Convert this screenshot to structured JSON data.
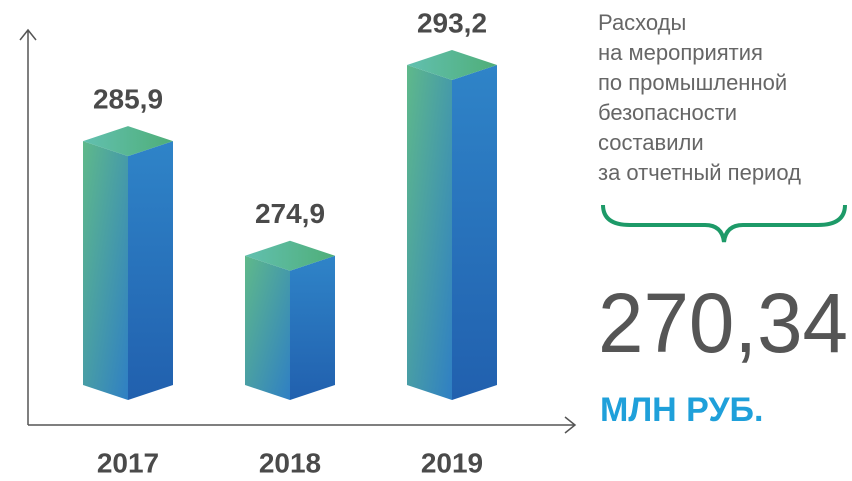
{
  "chart_data": {
    "type": "bar",
    "categories": [
      "2017",
      "2018",
      "2019"
    ],
    "values": [
      285.9,
      274.9,
      293.2
    ],
    "value_labels": [
      "285,9",
      "274,9",
      "293,2"
    ],
    "ylim": [
      262.5,
      298
    ],
    "annotations": {
      "description": [
        "Расходы",
        "на мероприятия",
        "по промышленной",
        "безопасности",
        "составили",
        "за отчетный период"
      ],
      "total": "270,34",
      "unit": "МЛН РУБ."
    }
  }
}
